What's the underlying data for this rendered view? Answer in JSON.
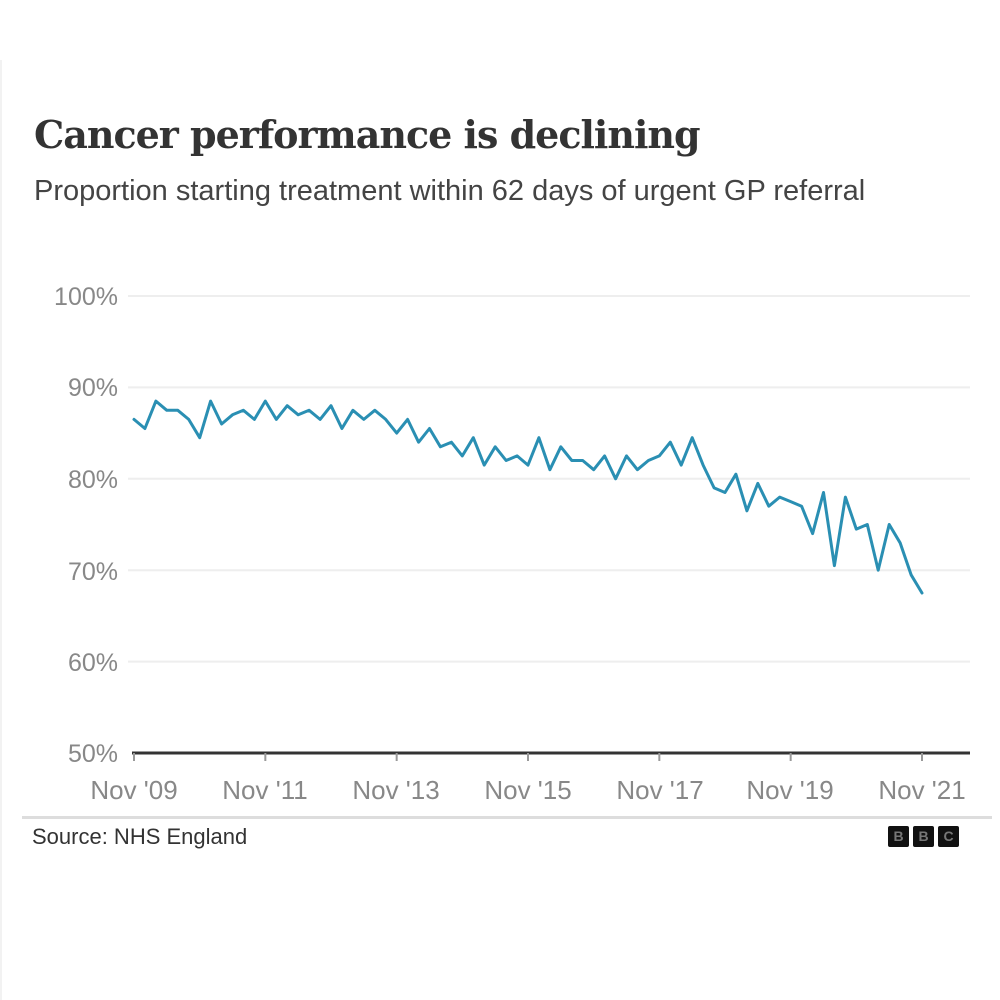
{
  "header": {
    "title": "Cancer performance is declining",
    "subtitle": "Proportion starting treatment within 62 days of urgent GP referral"
  },
  "footer": {
    "source": "Source: NHS England",
    "logo": [
      "B",
      "B",
      "C"
    ]
  },
  "colors": {
    "line": "#2a8fb3",
    "grid": "#eeeeee",
    "axis": "#333333"
  },
  "chart_data": {
    "type": "line",
    "title": "Cancer performance is declining",
    "subtitle": "Proportion starting treatment within 62 days of urgent GP referral",
    "xlabel": "",
    "ylabel": "",
    "ylim": [
      50,
      100
    ],
    "yticks": [
      "100%",
      "90%",
      "80%",
      "70%",
      "60%",
      "50%"
    ],
    "xticks": [
      "Nov '09",
      "Nov '11",
      "Nov '13",
      "Nov '15",
      "Nov '17",
      "Nov '19",
      "Nov '21"
    ],
    "grid": true,
    "legend": "none",
    "source": "NHS England",
    "series": [
      {
        "name": "Proportion starting treatment within 62 days",
        "x": [
          "Nov '09",
          "Jan '10",
          "Mar '10",
          "May '10",
          "Jul '10",
          "Sep '10",
          "Nov '10",
          "Jan '11",
          "Mar '11",
          "May '11",
          "Jul '11",
          "Sep '11",
          "Nov '11",
          "Jan '12",
          "Mar '12",
          "May '12",
          "Jul '12",
          "Sep '12",
          "Nov '12",
          "Jan '13",
          "Mar '13",
          "May '13",
          "Jul '13",
          "Sep '13",
          "Nov '13",
          "Jan '14",
          "Mar '14",
          "May '14",
          "Jul '14",
          "Sep '14",
          "Nov '14",
          "Jan '15",
          "Mar '15",
          "May '15",
          "Jul '15",
          "Sep '15",
          "Nov '15",
          "Jan '16",
          "Mar '16",
          "May '16",
          "Jul '16",
          "Sep '16",
          "Nov '16",
          "Jan '17",
          "Mar '17",
          "May '17",
          "Jul '17",
          "Sep '17",
          "Nov '17",
          "Jan '18",
          "Mar '18",
          "May '18",
          "Jul '18",
          "Sep '18",
          "Nov '18",
          "Jan '19",
          "Mar '19",
          "May '19",
          "Jul '19",
          "Sep '19",
          "Nov '19",
          "Jan '20",
          "Mar '20",
          "May '20",
          "Jul '20",
          "Sep '20",
          "Nov '20",
          "Jan '21",
          "Mar '21",
          "May '21",
          "Jul '21",
          "Sep '21",
          "Nov '21"
        ],
        "values": [
          86.5,
          85.5,
          88.5,
          87.5,
          87.5,
          86.5,
          84.5,
          88.5,
          86.0,
          87.0,
          87.5,
          86.5,
          88.5,
          86.5,
          88.0,
          87.0,
          87.5,
          86.5,
          88.0,
          85.5,
          87.5,
          86.5,
          87.5,
          86.5,
          85.0,
          86.5,
          84.0,
          85.5,
          83.5,
          84.0,
          82.5,
          84.5,
          81.5,
          83.5,
          82.0,
          82.5,
          81.5,
          84.5,
          81.0,
          83.5,
          82.0,
          82.0,
          81.0,
          82.5,
          80.0,
          82.5,
          81.0,
          82.0,
          82.5,
          84.0,
          81.5,
          84.5,
          81.5,
          79.0,
          78.5,
          80.5,
          76.5,
          79.5,
          77.0,
          78.0,
          77.5,
          77.0,
          74.0,
          78.5,
          70.5,
          78.0,
          74.5,
          75.0,
          70.0,
          75.0,
          73.0,
          69.5,
          67.5
        ]
      }
    ]
  }
}
